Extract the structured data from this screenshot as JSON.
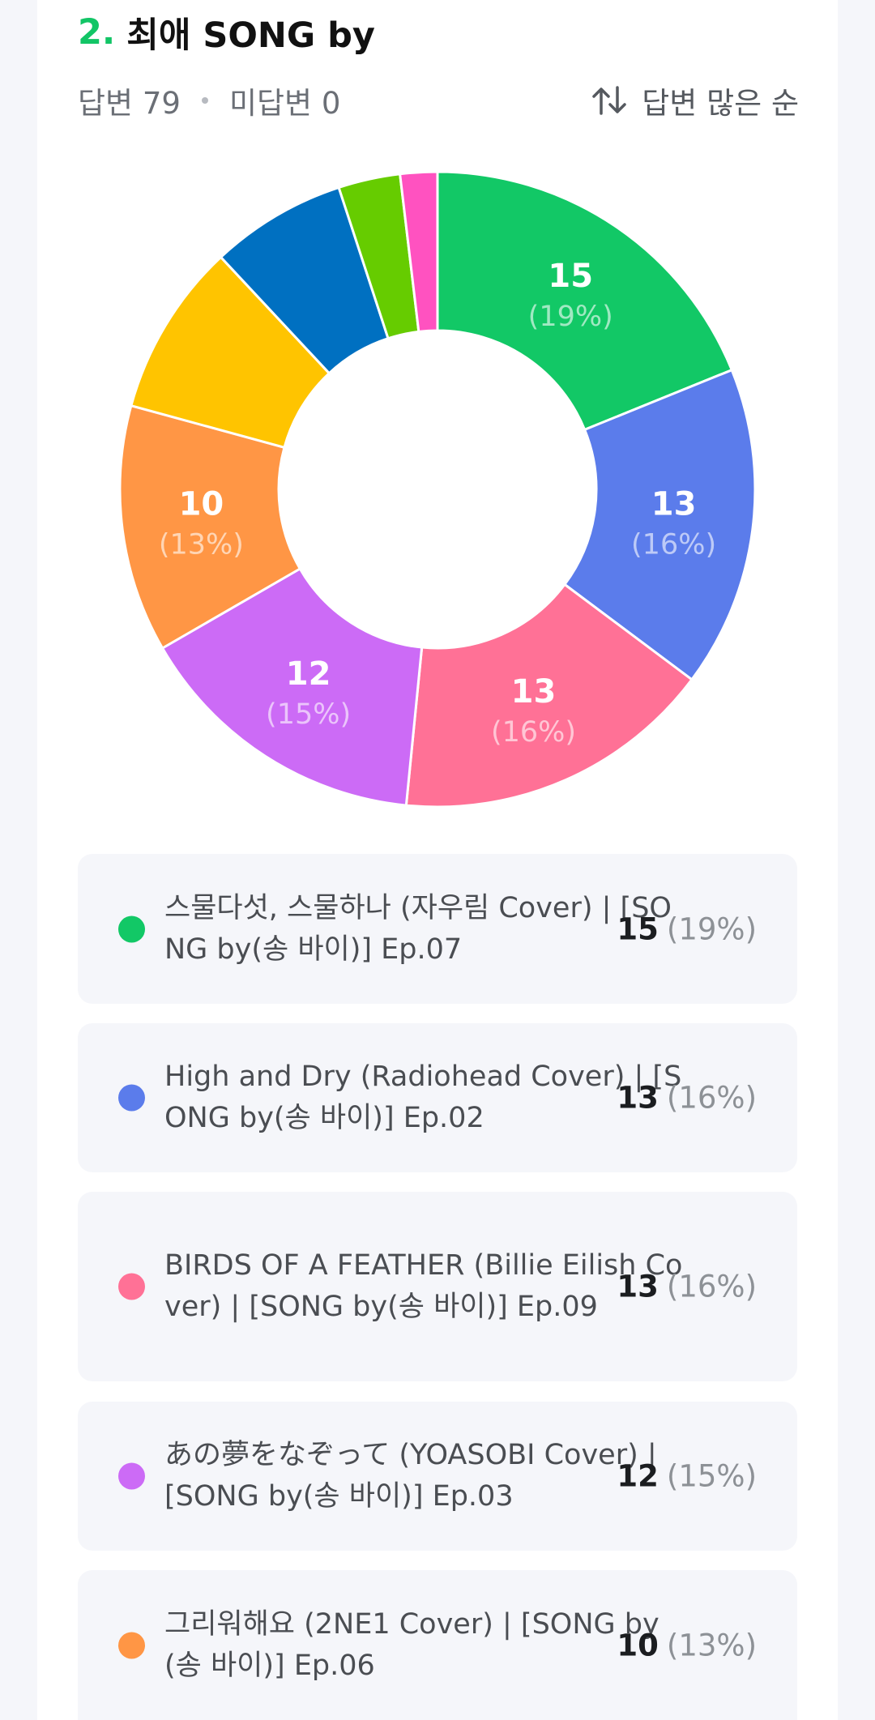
{
  "question": {
    "number": "2.",
    "title": "최애 SONG by",
    "answered": "답변 79",
    "unanswered": "미답변 0",
    "sort_label": "답변 많은 순"
  },
  "chart_data": {
    "type": "pie",
    "donut": true,
    "total": 79,
    "slices": [
      {
        "label": "스물다섯, 스물하나 (자우림 Cover) | [SONG by(송 바이)] Ep.07",
        "value": 15,
        "percent": "19%",
        "color": "#12c866",
        "show_label": true
      },
      {
        "label": "High and Dry (Radiohead Cover) | [SONG by(송 바이)] Ep.02",
        "value": 13,
        "percent": "16%",
        "color": "#5b7ceb",
        "show_label": true
      },
      {
        "label": "BIRDS OF A FEATHER (Billie Eilish Cover) | [SONG by(송 바이)] Ep.09",
        "value": 13,
        "percent": "16%",
        "color": "#ff7196",
        "show_label": true
      },
      {
        "label": "あの夢をなぞって (YOASOBI Cover) | [SONG by(송 바이)] Ep.03",
        "value": 12,
        "percent": "15%",
        "color": "#cc6bf6",
        "show_label": true
      },
      {
        "label": "그리워해요 (2NE1 Cover) | [SONG by(송 바이)] Ep.06",
        "value": 10,
        "percent": "13%",
        "color": "#ff9645",
        "show_label": true
      },
      {
        "label": "",
        "value": 7,
        "percent": "",
        "color": "#ffc400",
        "show_label": false
      },
      {
        "label": "",
        "value": 5.5,
        "percent": "",
        "color": "#0070c1",
        "show_label": false
      },
      {
        "label": "",
        "value": 2.5,
        "percent": "",
        "color": "#66cc00",
        "show_label": false
      },
      {
        "label": "",
        "value": 1.5,
        "percent": "",
        "color": "#ff52c0",
        "show_label": false
      }
    ]
  },
  "legend": [
    {
      "label": "스물다섯, 스물하나 (자우림 Cover) | [SONG by(송 바이)] Ep.07",
      "count": "15",
      "percent": "(19%)",
      "color": "#12c866"
    },
    {
      "label": "High and Dry (Radiohead Cover) | [SONG by(송 바이)] Ep.02",
      "count": "13",
      "percent": "(16%)",
      "color": "#5b7ceb"
    },
    {
      "label": "BIRDS OF A FEATHER (Billie Eilish Cover) | [SONG by(송 바이)] Ep.09",
      "count": "13",
      "percent": "(16%)",
      "color": "#ff7196"
    },
    {
      "label": "あの夢をなぞって (YOASOBI Cover) | [SONG by(송 바이)] Ep.03",
      "count": "12",
      "percent": "(15%)",
      "color": "#cc6bf6"
    },
    {
      "label": "그리워해요 (2NE1 Cover) | [SONG by(송 바이)] Ep.06",
      "count": "10",
      "percent": "(13%)",
      "color": "#ff9645"
    }
  ]
}
